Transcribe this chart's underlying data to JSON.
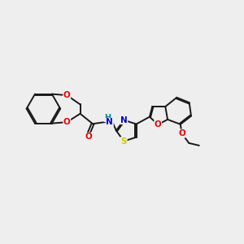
{
  "bg_color": "#eeeeee",
  "bond_color": "#1a1a1a",
  "bond_width": 1.4,
  "atom_colors": {
    "O": "#ee0000",
    "N": "#0000cc",
    "S": "#cccc00",
    "H": "#008888",
    "C": "#1a1a1a"
  },
  "font_size": 7.5,
  "dbo": 0.055
}
